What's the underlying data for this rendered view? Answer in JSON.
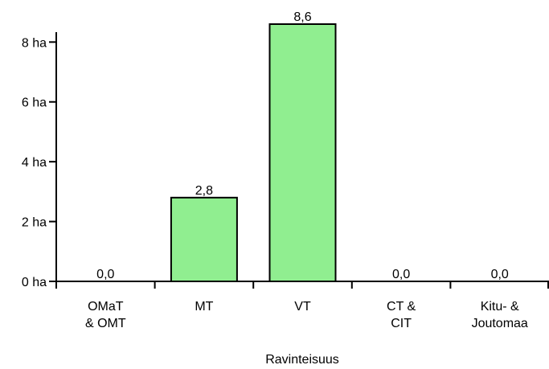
{
  "chart_data": {
    "type": "bar",
    "categories": [
      [
        "OMaT",
        "& OMT"
      ],
      [
        "MT"
      ],
      [
        "VT"
      ],
      [
        "CT &",
        "CIT"
      ],
      [
        "Kitu- &",
        "Joutomaa"
      ]
    ],
    "values": [
      0.0,
      2.8,
      8.6,
      0.0,
      0.0
    ],
    "data_labels": [
      "0,0",
      "2,8",
      "8,6",
      "0,0",
      "0,0"
    ],
    "title": "",
    "xlabel": "Ravinteisuus",
    "ylabel": "",
    "ylim": [
      0,
      8.6
    ],
    "yticks": [
      0,
      2,
      4,
      6,
      8
    ],
    "ytick_labels": [
      "0 ha",
      "2 ha",
      "4 ha",
      "6 ha",
      "8 ha"
    ],
    "grid": false,
    "bar_color": "#90ee90",
    "bar_edge_color": "#000000"
  }
}
